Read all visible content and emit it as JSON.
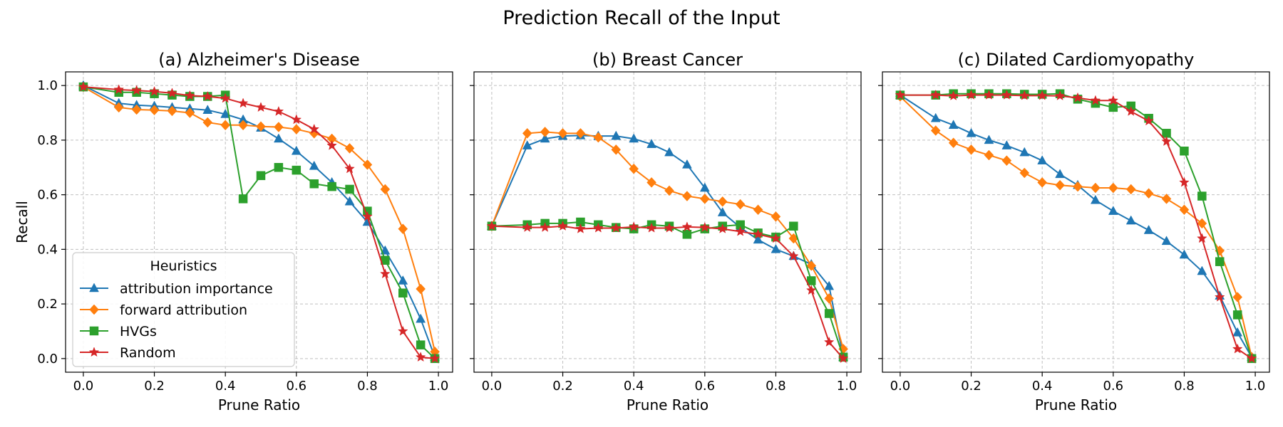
{
  "figure": {
    "title": "Prediction Recall of the Input"
  },
  "colors": {
    "attribution importance": "#1f77b4",
    "forward attribution": "#ff7f0e",
    "HVGs": "#2ca02c",
    "Random": "#d62728"
  },
  "legend": {
    "title": "Heuristics",
    "placement": "lower-left of first panel",
    "entries": [
      {
        "name": "attribution importance",
        "marker": "triangle"
      },
      {
        "name": "forward attribution",
        "marker": "diamond"
      },
      {
        "name": "HVGs",
        "marker": "square"
      },
      {
        "name": "Random",
        "marker": "star"
      }
    ]
  },
  "chart_data": [
    {
      "type": "line",
      "title": "(a) Alzheimer's Disease",
      "xlabel": "Prune Ratio",
      "ylabel": "Recall",
      "xlim": [
        -0.05,
        1.04
      ],
      "ylim": [
        -0.05,
        1.05
      ],
      "xticks": [
        "0.0",
        "0.2",
        "0.4",
        "0.6",
        "0.8",
        "1.0"
      ],
      "yticks": [
        "0.0",
        "0.2",
        "0.4",
        "0.6",
        "0.8",
        "1.0"
      ],
      "grid": true,
      "x": [
        0.0,
        0.1,
        0.15,
        0.2,
        0.25,
        0.3,
        0.35,
        0.4,
        0.45,
        0.5,
        0.55,
        0.6,
        0.65,
        0.7,
        0.75,
        0.8,
        0.85,
        0.9,
        0.95,
        0.99
      ],
      "series": [
        {
          "name": "attribution importance",
          "values": [
            1.0,
            0.935,
            0.928,
            0.925,
            0.92,
            0.915,
            0.91,
            0.895,
            0.875,
            0.845,
            0.805,
            0.76,
            0.705,
            0.645,
            0.575,
            0.5,
            0.395,
            0.285,
            0.145,
            0.005
          ]
        },
        {
          "name": "forward attribution",
          "values": [
            0.995,
            0.92,
            0.912,
            0.91,
            0.907,
            0.9,
            0.865,
            0.855,
            0.855,
            0.85,
            0.848,
            0.84,
            0.825,
            0.805,
            0.77,
            0.71,
            0.62,
            0.475,
            0.255,
            0.025
          ]
        },
        {
          "name": "HVGs",
          "values": [
            0.995,
            0.975,
            0.975,
            0.97,
            0.965,
            0.96,
            0.96,
            0.965,
            0.585,
            0.67,
            0.7,
            0.69,
            0.64,
            0.63,
            0.62,
            0.54,
            0.36,
            0.24,
            0.05,
            0.0
          ]
        },
        {
          "name": "Random",
          "values": [
            0.995,
            0.985,
            0.982,
            0.978,
            0.972,
            0.963,
            0.96,
            0.953,
            0.935,
            0.92,
            0.905,
            0.875,
            0.84,
            0.78,
            0.695,
            0.52,
            0.31,
            0.1,
            0.005,
            0.0
          ]
        }
      ]
    },
    {
      "type": "line",
      "title": "(b) Breast Cancer",
      "xlabel": "Prune Ratio",
      "ylabel": "",
      "xlim": [
        -0.05,
        1.04
      ],
      "ylim": [
        -0.05,
        1.05
      ],
      "xticks": [
        "0.0",
        "0.2",
        "0.4",
        "0.6",
        "0.8",
        "1.0"
      ],
      "yticks": [],
      "grid": true,
      "x": [
        0.0,
        0.1,
        0.15,
        0.2,
        0.25,
        0.3,
        0.35,
        0.4,
        0.45,
        0.5,
        0.55,
        0.6,
        0.65,
        0.7,
        0.75,
        0.8,
        0.85,
        0.9,
        0.95,
        0.99
      ],
      "series": [
        {
          "name": "attribution importance",
          "values": [
            0.485,
            0.78,
            0.805,
            0.815,
            0.817,
            0.815,
            0.815,
            0.805,
            0.785,
            0.755,
            0.71,
            0.625,
            0.535,
            0.48,
            0.435,
            0.4,
            0.375,
            0.345,
            0.265,
            0.005
          ]
        },
        {
          "name": "forward attribution",
          "values": [
            0.485,
            0.825,
            0.83,
            0.825,
            0.825,
            0.81,
            0.765,
            0.695,
            0.645,
            0.615,
            0.595,
            0.585,
            0.575,
            0.565,
            0.545,
            0.52,
            0.44,
            0.34,
            0.22,
            0.035
          ]
        },
        {
          "name": "HVGs",
          "values": [
            0.485,
            0.49,
            0.495,
            0.495,
            0.5,
            0.49,
            0.48,
            0.475,
            0.49,
            0.485,
            0.455,
            0.475,
            0.485,
            0.49,
            0.46,
            0.445,
            0.485,
            0.285,
            0.165,
            0.005
          ]
        },
        {
          "name": "Random",
          "values": [
            0.485,
            0.48,
            0.48,
            0.485,
            0.475,
            0.478,
            0.478,
            0.482,
            0.478,
            0.478,
            0.482,
            0.48,
            0.475,
            0.465,
            0.455,
            0.44,
            0.375,
            0.25,
            0.06,
            0.0
          ]
        }
      ]
    },
    {
      "type": "line",
      "title": "(c) Dilated Cardiomyopathy",
      "xlabel": "Prune Ratio",
      "ylabel": "",
      "xlim": [
        -0.05,
        1.04
      ],
      "ylim": [
        -0.05,
        1.05
      ],
      "xticks": [
        "0.0",
        "0.2",
        "0.4",
        "0.6",
        "0.8",
        "1.0"
      ],
      "yticks": [],
      "grid": true,
      "x": [
        0.0,
        0.1,
        0.15,
        0.2,
        0.25,
        0.3,
        0.35,
        0.4,
        0.45,
        0.5,
        0.55,
        0.6,
        0.65,
        0.7,
        0.75,
        0.8,
        0.85,
        0.9,
        0.95,
        0.99
      ],
      "series": [
        {
          "name": "attribution importance",
          "values": [
            0.965,
            0.88,
            0.855,
            0.825,
            0.8,
            0.78,
            0.755,
            0.725,
            0.675,
            0.635,
            0.58,
            0.54,
            0.505,
            0.47,
            0.43,
            0.38,
            0.32,
            0.23,
            0.095,
            0.005
          ]
        },
        {
          "name": "forward attribution",
          "values": [
            0.96,
            0.835,
            0.79,
            0.765,
            0.745,
            0.725,
            0.68,
            0.645,
            0.635,
            0.63,
            0.625,
            0.625,
            0.62,
            0.605,
            0.585,
            0.545,
            0.495,
            0.395,
            0.225,
            0.005
          ]
        },
        {
          "name": "HVGs",
          "values": [
            0.965,
            0.965,
            0.97,
            0.97,
            0.97,
            0.97,
            0.968,
            0.968,
            0.97,
            0.95,
            0.935,
            0.92,
            0.925,
            0.88,
            0.825,
            0.76,
            0.595,
            0.355,
            0.16,
            0.0
          ]
        },
        {
          "name": "Random",
          "values": [
            0.965,
            0.965,
            0.962,
            0.965,
            0.965,
            0.965,
            0.963,
            0.963,
            0.962,
            0.955,
            0.945,
            0.945,
            0.905,
            0.87,
            0.795,
            0.645,
            0.44,
            0.225,
            0.035,
            0.0
          ]
        }
      ]
    }
  ]
}
